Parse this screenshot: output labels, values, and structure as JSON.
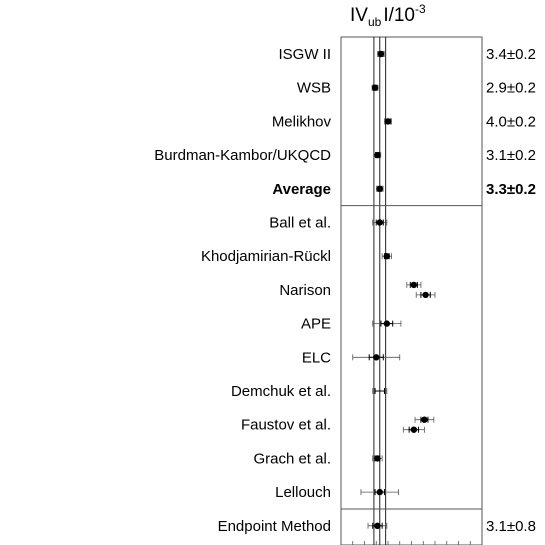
{
  "chart_data": {
    "type": "forest",
    "title": {
      "prefix": "IV",
      "subscript": "ub",
      "suffix": "I/10",
      "superscript": "-3"
    },
    "rows": [
      {
        "label": "ISGW II",
        "value": 3.4,
        "errors": [
          0.18,
          0.28
        ],
        "value_text": "3.4±0.2",
        "bold": false
      },
      {
        "label": "WSB",
        "value": 2.9,
        "errors": [
          0.16,
          0.25
        ],
        "value_text": "2.9±0.2",
        "bold": false
      },
      {
        "label": "Melikhov",
        "value": 4.0,
        "errors": [
          0.2,
          0.3
        ],
        "value_text": "4.0±0.2",
        "bold": false
      },
      {
        "label": "Burdman-Kambor/UKQCD",
        "value": 3.1,
        "errors": [
          0.16,
          0.28
        ],
        "value_text": "3.1±0.2",
        "bold": false
      },
      {
        "label": "Average",
        "value": 3.3,
        "errors": [
          0.17,
          0.28
        ],
        "value_text": "3.3±0.2",
        "bold": true
      },
      {
        "label": "Ball et al.",
        "value": 3.3,
        "errors": [
          0.3,
          0.6
        ]
      },
      {
        "label": "Khodjamirian-Rückl",
        "value": 3.9,
        "errors": [
          0.2,
          0.4
        ]
      },
      {
        "label": "Narison",
        "points": [
          {
            "value": 6.2,
            "errors": [
              0.3,
              0.6
            ]
          },
          {
            "value": 7.2,
            "errors": [
              0.4,
              0.8
            ]
          }
        ]
      },
      {
        "label": "APE",
        "value": 3.9,
        "errors": [
          0.5,
          1.2
        ]
      },
      {
        "label": "ELC",
        "value": 3.0,
        "errors": [
          0.6,
          2.0
        ]
      },
      {
        "label": "Demchuk et al.",
        "value": 3.3,
        "errors": [
          0.4,
          0.6
        ],
        "no_marker": true
      },
      {
        "label": "Faustov et al.",
        "points": [
          {
            "value": 7.1,
            "errors": [
              0.3,
              0.8
            ]
          },
          {
            "value": 6.2,
            "errors": [
              0.4,
              0.9
            ]
          }
        ]
      },
      {
        "label": "Grach et al.",
        "value": 3.1,
        "errors": [
          0.2,
          0.4
        ]
      },
      {
        "label": "Lellouch",
        "value": 3.3,
        "errors": [
          0.4,
          1.6
        ]
      },
      {
        "label": "Endpoint Method",
        "value": 3.1,
        "errors": [
          0.4,
          0.8
        ],
        "value_text": "3.1±0.8",
        "bold": false
      }
    ],
    "group_separators_after": [
      "Average",
      "Lellouch"
    ],
    "reference_lines": [
      2.8,
      3.3,
      3.8
    ],
    "xlim": [
      0,
      12
    ],
    "grid": false
  }
}
